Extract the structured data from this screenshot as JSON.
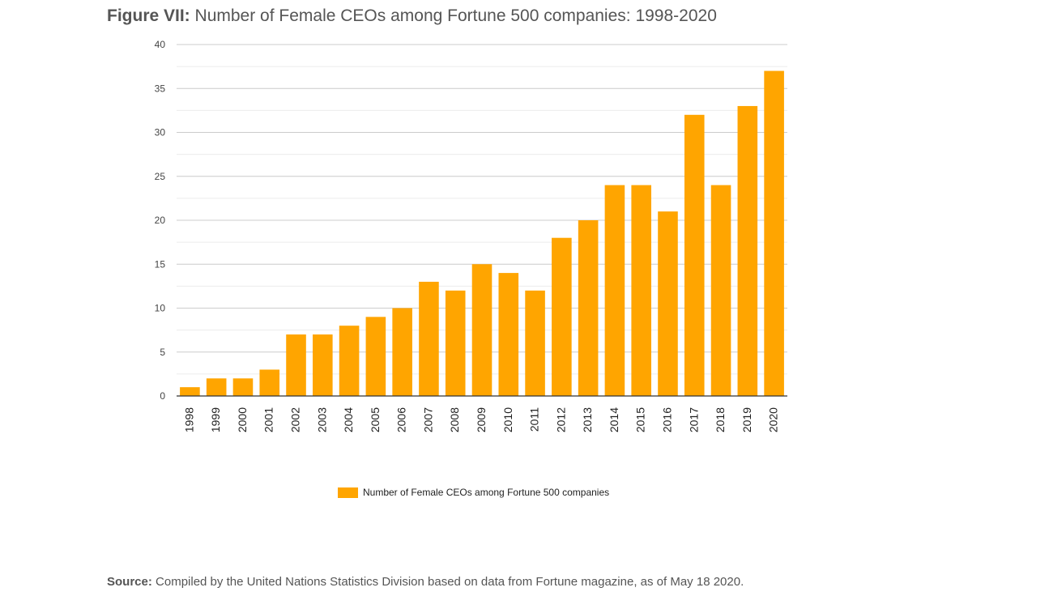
{
  "figure": {
    "label": "Figure VII:",
    "title": "Number of Female CEOs among Fortune 500 companies: 1998-2020"
  },
  "source": {
    "label": "Source:",
    "text": "Compiled by the United Nations Statistics Division based on data from Fortune magazine, as of May 18 2020."
  },
  "chart_data": {
    "type": "bar",
    "title": "Number of Female CEOs among Fortune 500 companies: 1998-2020",
    "xlabel": "",
    "ylabel": "",
    "categories": [
      "1998",
      "1999",
      "2000",
      "2001",
      "2002",
      "2003",
      "2004",
      "2005",
      "2006",
      "2007",
      "2008",
      "2009",
      "2010",
      "2011",
      "2012",
      "2013",
      "2014",
      "2015",
      "2016",
      "2017",
      "2018",
      "2019",
      "2020"
    ],
    "series": [
      {
        "name": "Number of Female CEOs among Fortune 500 companies",
        "values": [
          1,
          2,
          2,
          3,
          7,
          7,
          8,
          9,
          10,
          13,
          12,
          15,
          14,
          12,
          18,
          20,
          24,
          24,
          21,
          32,
          24,
          33,
          37
        ],
        "color": "#ffa500"
      }
    ],
    "ylim": [
      0,
      40
    ],
    "yticks": [
      0,
      5,
      10,
      15,
      20,
      25,
      30,
      35,
      40
    ],
    "grid": true,
    "legend_position": "bottom-center",
    "x_tick_rotation": "vertical"
  }
}
